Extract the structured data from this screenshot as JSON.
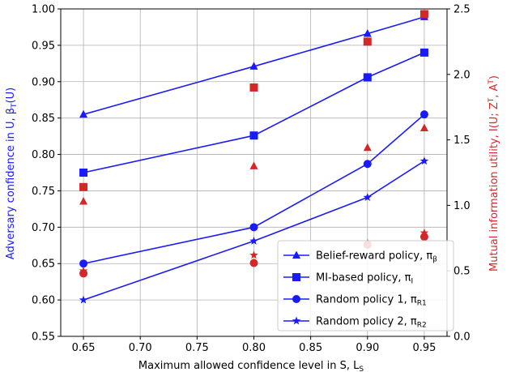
{
  "chart_data": {
    "type": "line",
    "xlabel": "Maximum allowed confidence level in S, L",
    "xlabel_sub": "S",
    "ylabel_left": "Adversary confidence in U, β",
    "ylabel_left_sub": "T",
    "ylabel_left_tail": "(U)",
    "ylabel_right": "Mutual information utility, I(U; Z",
    "ylabel_right_sup1": "T",
    "ylabel_right_mid": ", A",
    "ylabel_right_sup2": "T",
    "ylabel_right_tail": ")",
    "xlim": [
      0.63,
      0.97
    ],
    "ylim_left": [
      0.55,
      1.0
    ],
    "ylim_right": [
      0.0,
      2.5
    ],
    "xticks": [
      "0.65",
      "0.70",
      "0.75",
      "0.80",
      "0.85",
      "0.90",
      "0.95"
    ],
    "yticks_left": [
      "0.55",
      "0.60",
      "0.65",
      "0.70",
      "0.75",
      "0.80",
      "0.85",
      "0.90",
      "0.95",
      "1.00"
    ],
    "yticks_right": [
      "0.0",
      "0.5",
      "1.0",
      "1.5",
      "2.0",
      "2.5"
    ],
    "grid": true,
    "legend_position": "bottom-right",
    "x": [
      0.65,
      0.8,
      0.9,
      0.95
    ],
    "series": [
      {
        "name": "Belief-reward policy, π",
        "sub": "β",
        "marker": "triangle",
        "axis": "left",
        "values": [
          0.855,
          0.921,
          0.966,
          0.989
        ]
      },
      {
        "name": "MI-based policy, π",
        "sub": "I",
        "marker": "square",
        "axis": "left",
        "values": [
          0.775,
          0.826,
          0.906,
          0.94
        ]
      },
      {
        "name": "Random policy 1, π",
        "sub": "R1",
        "marker": "circle",
        "axis": "left",
        "values": [
          0.65,
          0.7,
          0.787,
          0.855
        ]
      },
      {
        "name": "Random policy 2, π",
        "sub": "R2",
        "marker": "star",
        "axis": "left",
        "values": [
          0.6,
          0.681,
          0.741,
          0.791
        ]
      }
    ],
    "right_series": [
      {
        "marker": "triangle",
        "axis": "right",
        "values": [
          1.03,
          1.3,
          1.44,
          1.59
        ]
      },
      {
        "marker": "square",
        "axis": "right",
        "values": [
          1.14,
          1.9,
          2.25,
          2.46
        ]
      },
      {
        "marker": "circle",
        "axis": "right",
        "values": [
          0.48,
          0.56,
          0.7,
          0.76
        ]
      },
      {
        "marker": "star",
        "axis": "right",
        "values": [
          0.5,
          0.62,
          0.71,
          0.79
        ]
      }
    ],
    "colors": {
      "left": "#1a1aff",
      "right": "#d62728",
      "grid": "#b0b0b0"
    }
  }
}
